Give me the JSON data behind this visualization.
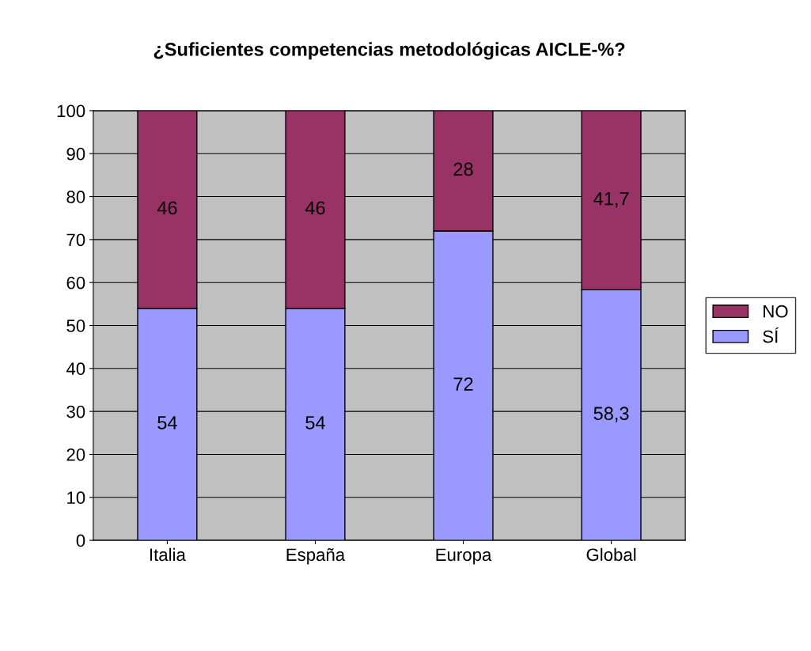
{
  "chart_data": {
    "type": "bar",
    "title": "¿Suficientes competencias metodológicas AICLE-%?",
    "categories": [
      "Italia",
      "España",
      "Europa",
      "Global"
    ],
    "stacked": true,
    "series": [
      {
        "name": "SÍ",
        "color": "#9999ff",
        "values": [
          54,
          54,
          72,
          58.3
        ],
        "value_labels": [
          "54",
          "54",
          "72",
          "58,3"
        ]
      },
      {
        "name": "NO",
        "color": "#993366",
        "values": [
          46,
          46,
          28,
          41.7
        ],
        "value_labels": [
          "46",
          "46",
          "28",
          "41,7"
        ]
      }
    ],
    "ylim": [
      0,
      100
    ],
    "yticks": [
      0,
      10,
      20,
      30,
      40,
      50,
      60,
      70,
      80,
      90,
      100
    ],
    "grid": "y",
    "legend": "right"
  }
}
